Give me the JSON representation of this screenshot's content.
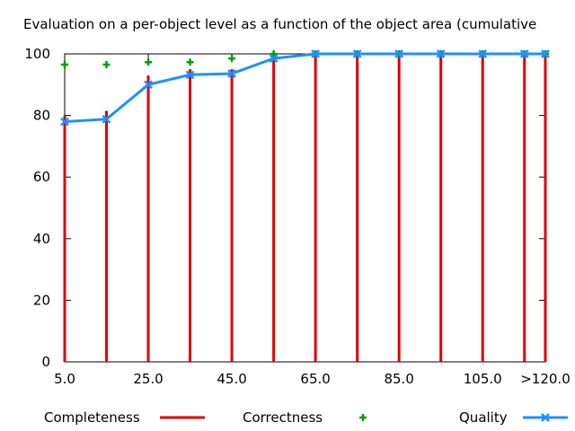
{
  "chart_data": {
    "type": "bar",
    "title": "Evaluation on a per-object level as a function of the object area (cumulative",
    "xlabel": "",
    "ylabel": "",
    "x": [
      5,
      15,
      25,
      35,
      45,
      55,
      65,
      75,
      85,
      95,
      105,
      115,
      120
    ],
    "xlim": [
      5,
      120
    ],
    "x_ticks": [
      5,
      25,
      45,
      65,
      85,
      105,
      120
    ],
    "x_tick_labels": [
      "5.0",
      "25.0",
      "45.0",
      "65.0",
      "85.0",
      "105.0",
      ">120.0"
    ],
    "ylim": [
      0,
      100
    ],
    "y_ticks": [
      0,
      20,
      40,
      60,
      80,
      100
    ],
    "y_tick_labels": [
      "0",
      "20",
      "40",
      "60",
      "80",
      "100"
    ],
    "grid": false,
    "legend_position": "bottom",
    "series": [
      {
        "name": "Completeness",
        "style": "impulses",
        "color": "#e00000",
        "values": [
          80,
          81.5,
          93,
          95,
          95,
          100,
          100,
          100,
          100,
          100,
          100,
          100,
          100
        ]
      },
      {
        "name": "Correctness",
        "style": "points",
        "marker": "plus",
        "color": "#00a000",
        "values": [
          96.5,
          96.5,
          97.3,
          97.3,
          98.5,
          100,
          100,
          100,
          100,
          100,
          100,
          100,
          100
        ]
      },
      {
        "name": "Quality",
        "style": "linespoints",
        "marker": "x",
        "color": "#1e90ff",
        "values": [
          78,
          78.8,
          90,
          93.2,
          93.6,
          98.5,
          100,
          100,
          100,
          100,
          100,
          100,
          100
        ]
      }
    ]
  }
}
